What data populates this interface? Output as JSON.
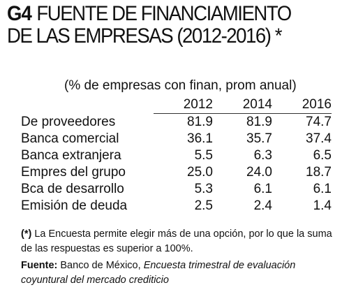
{
  "title": {
    "code": "G4",
    "line1": "FUENTE DE FINANCIAMIENTO",
    "line2": "DE LAS EMPRESAS (2012-2016) *"
  },
  "subtitle": "(% de empresas con finan, prom anual)",
  "table": {
    "years": [
      "2012",
      "2014",
      "2016"
    ],
    "rows": [
      {
        "label": "De proveedores",
        "values": [
          "81.9",
          "81.9",
          "74.7"
        ]
      },
      {
        "label": "Banca comercial",
        "values": [
          "36.1",
          "35.7",
          "37.4"
        ]
      },
      {
        "label": "Banca extranjera",
        "values": [
          "5.5",
          "6.3",
          "6.5"
        ]
      },
      {
        "label": "Empres del grupo",
        "values": [
          "25.0",
          "24.0",
          "18.7"
        ]
      },
      {
        "label": "Bca de desarrollo",
        "values": [
          "5.3",
          "6.1",
          "6.1"
        ]
      },
      {
        "label": "Emisión de deuda",
        "values": [
          "2.5",
          "2.4",
          "1.4"
        ]
      }
    ]
  },
  "note": {
    "marker": "(*)",
    "text": " La Encuesta permite elegir más de una opción, por lo que la suma de las respuestas es superior a 100%."
  },
  "source": {
    "label": "Fuente:",
    "plain": " Banco de México, ",
    "italic": "Encuesta trimestral de evaluación coyuntural del mercado crediticio"
  }
}
